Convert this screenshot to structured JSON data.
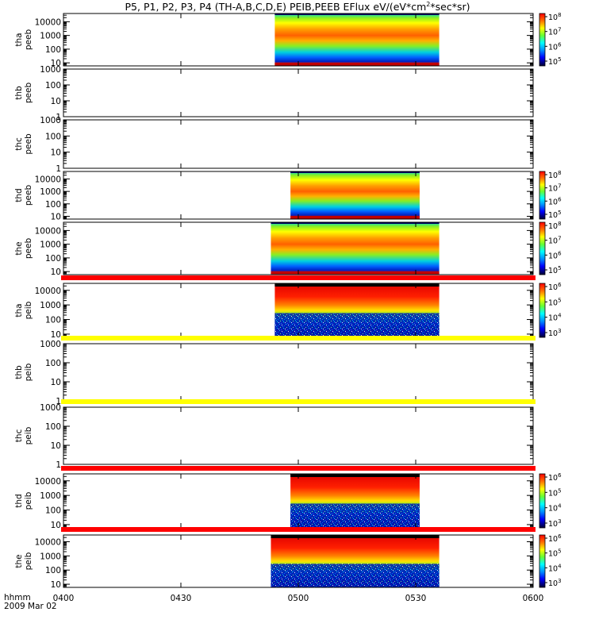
{
  "title": "P5, P1, P2, P3, P4 (TH-A,B,C,D,E) PEIB,PEEB EFlux eV/(eV*cm",
  "title_sup": "2",
  "title_tail": "*sec*sr)",
  "x_axis": {
    "label_top": "hhmm",
    "label_bottom": "2009 Mar 02",
    "ticks": [
      "0400",
      "0430",
      "0500",
      "0530",
      "0600"
    ]
  },
  "chart_data": {
    "type": "heatmap",
    "time_range": [
      "04:00",
      "06:00"
    ],
    "x_tick_labels": [
      "0400",
      "0430",
      "0500",
      "0530",
      "0600"
    ],
    "y_scale": "log",
    "panels": [
      {
        "probe": "tha",
        "product": "peeb",
        "ylabel_1": "tha",
        "ylabel_2": "peeb",
        "yrange": [
          6,
          40000
        ],
        "yticks": [
          "10",
          "100",
          "1000",
          "10000"
        ],
        "data_start": "04:54",
        "data_end": "05:36",
        "cbar": true,
        "cbar_labels": [
          "10",
          "10",
          "10",
          "10"
        ],
        "cbar_exps": [
          "8",
          "7",
          "6",
          "5"
        ],
        "bar_above": "",
        "kind": "electron",
        "ionfade_start": 0
      },
      {
        "probe": "thb",
        "product": "peeb",
        "ylabel_1": "thb",
        "ylabel_2": "peeb",
        "yrange": [
          1,
          1000
        ],
        "yticks": [
          "1",
          "10",
          "100",
          "1000"
        ],
        "data_start": "",
        "data_end": "",
        "cbar": false,
        "bar_above": "",
        "kind": "none"
      },
      {
        "probe": "thc",
        "product": "peeb",
        "ylabel_1": "thc",
        "ylabel_2": "peeb",
        "yrange": [
          1,
          1000
        ],
        "yticks": [
          "1",
          "10",
          "100",
          "1000"
        ],
        "data_start": "",
        "data_end": "",
        "cbar": false,
        "bar_above": "",
        "kind": "none"
      },
      {
        "probe": "thd",
        "product": "peeb",
        "ylabel_1": "thd",
        "ylabel_2": "peeb",
        "yrange": [
          6,
          40000
        ],
        "yticks": [
          "10",
          "100",
          "1000",
          "10000"
        ],
        "data_start": "04:58",
        "data_end": "05:31",
        "cbar": true,
        "cbar_labels": [
          "10",
          "10",
          "10",
          "10"
        ],
        "cbar_exps": [
          "8",
          "7",
          "6",
          "5"
        ],
        "bar_above": "",
        "kind": "electron"
      },
      {
        "probe": "the",
        "product": "peeb",
        "ylabel_1": "the",
        "ylabel_2": "peeb",
        "yrange": [
          6,
          40000
        ],
        "yticks": [
          "10",
          "100",
          "1000",
          "10000"
        ],
        "data_start": "04:53",
        "data_end": "05:36",
        "cbar": true,
        "cbar_labels": [
          "10",
          "10",
          "10",
          "10"
        ],
        "cbar_exps": [
          "8",
          "7",
          "6",
          "5"
        ],
        "bar_above": "",
        "kind": "electron"
      },
      {
        "probe": "tha",
        "product": "peib",
        "ylabel_1": "tha",
        "ylabel_2": "peib",
        "yrange": [
          6,
          30000
        ],
        "yticks": [
          "10",
          "100",
          "1000",
          "10000"
        ],
        "data_start": "04:54",
        "data_end": "05:36",
        "cbar": true,
        "cbar_labels": [
          "10",
          "10",
          "10",
          "10"
        ],
        "cbar_exps": [
          "6",
          "5",
          "4",
          "3"
        ],
        "bar_above": "#ff0000",
        "kind": "ion"
      },
      {
        "probe": "thb",
        "product": "peib",
        "ylabel_1": "thb",
        "ylabel_2": "peib",
        "yrange": [
          1,
          1000
        ],
        "yticks": [
          "1",
          "10",
          "100",
          "1000"
        ],
        "data_start": "",
        "data_end": "",
        "cbar": false,
        "bar_above": "#ffff00",
        "kind": "none"
      },
      {
        "probe": "thc",
        "product": "peib",
        "ylabel_1": "thc",
        "ylabel_2": "peib",
        "yrange": [
          1,
          1000
        ],
        "yticks": [
          "1",
          "10",
          "100",
          "1000"
        ],
        "data_start": "",
        "data_end": "",
        "cbar": false,
        "bar_above": "#ffff00",
        "kind": "none"
      },
      {
        "probe": "thd",
        "product": "peib",
        "ylabel_1": "thd",
        "ylabel_2": "peib",
        "yrange": [
          6,
          30000
        ],
        "yticks": [
          "10",
          "100",
          "1000",
          "10000"
        ],
        "data_start": "04:58",
        "data_end": "05:31",
        "cbar": true,
        "cbar_labels": [
          "10",
          "10",
          "10",
          "10"
        ],
        "cbar_exps": [
          "6",
          "5",
          "4",
          "3"
        ],
        "bar_above": "#ff0000",
        "kind": "ion"
      },
      {
        "probe": "the",
        "product": "peib",
        "ylabel_1": "the",
        "ylabel_2": "peib",
        "yrange": [
          6,
          30000
        ],
        "yticks": [
          "10",
          "100",
          "1000",
          "10000"
        ],
        "data_start": "04:53",
        "data_end": "05:36",
        "cbar": true,
        "cbar_labels": [
          "10",
          "10",
          "10",
          "10"
        ],
        "cbar_exps": [
          "6",
          "5",
          "4",
          "3"
        ],
        "bar_above": "#ff0000",
        "kind": "ion"
      }
    ]
  }
}
